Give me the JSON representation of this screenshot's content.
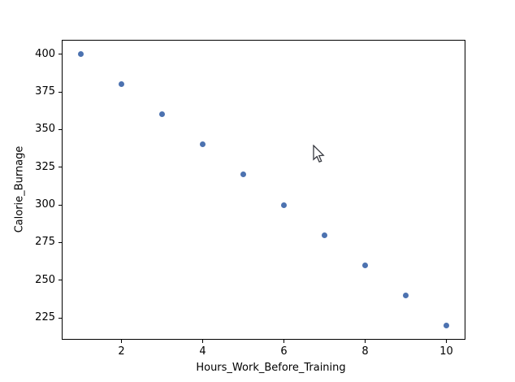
{
  "chart_data": {
    "type": "scatter",
    "title": "",
    "xlabel": "Hours_Work_Before_Training",
    "ylabel": "Calorie_Burnage",
    "x": [
      1,
      2,
      3,
      4,
      5,
      6,
      7,
      8,
      9,
      10
    ],
    "y": [
      400,
      380,
      360,
      340,
      320,
      300,
      280,
      260,
      240,
      220
    ],
    "xlim": [
      0.55,
      10.45
    ],
    "ylim": [
      211,
      409
    ],
    "xticks": [
      2,
      4,
      6,
      8,
      10
    ],
    "yticks": [
      225,
      250,
      275,
      300,
      325,
      350,
      375,
      400
    ],
    "marker_color": "#4C72B0",
    "axis_color": "#000000",
    "background_color": "#ffffff",
    "grid": false,
    "legend_position": null
  }
}
